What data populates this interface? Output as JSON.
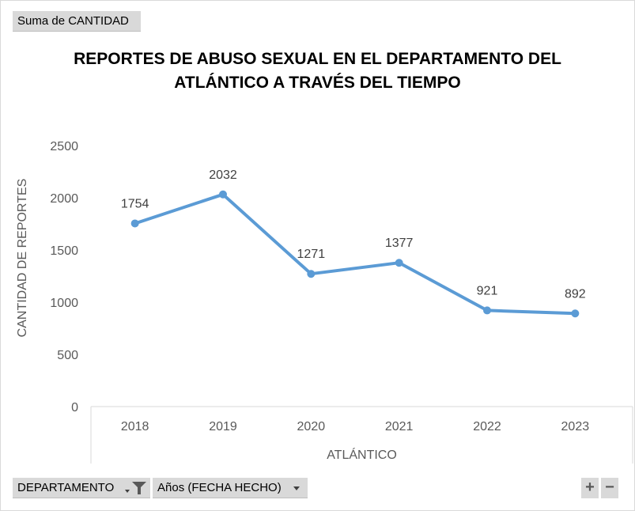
{
  "field_buttons": {
    "values_field": "Suma de CANTIDAD",
    "filter_field": "DEPARTAMENTO",
    "axis_field": "Años (FECHA HECHO)"
  },
  "zoom": {
    "expand": "+",
    "collapse": "−"
  },
  "icons": {
    "filter": "filter-icon",
    "dropdown": "chevron-down-icon"
  },
  "colors": {
    "series": "#5b9bd5"
  },
  "chart_data": {
    "type": "line",
    "title_line1": "REPORTES DE ABUSO SEXUAL EN EL DEPARTAMENTO DEL",
    "title_line2": "ATLÁNTICO A TRAVÉS DEL TIEMPO",
    "xlabel": "ATLÁNTICO",
    "ylabel": "CANTIDAD DE REPORTES",
    "categories": [
      "2018",
      "2019",
      "2020",
      "2021",
      "2022",
      "2023"
    ],
    "series": [
      {
        "values": [
          1754,
          2032,
          1271,
          1377,
          921,
          892
        ]
      }
    ],
    "ylim": [
      0,
      2500
    ],
    "yticks": [
      0,
      500,
      1000,
      1500,
      2000,
      2500
    ],
    "data_labels": true,
    "grid": false,
    "legend": "none"
  }
}
